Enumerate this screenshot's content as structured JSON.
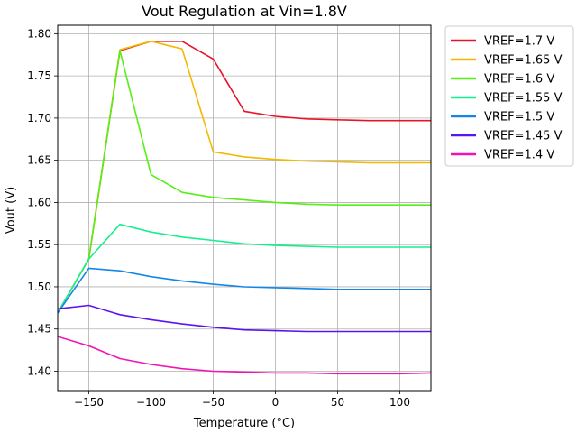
{
  "chart_data": {
    "type": "line",
    "title": "Vout Regulation at Vin=1.8V",
    "xlabel": "Temperature (°C)",
    "ylabel": "Vout (V)",
    "xlim": [
      -175,
      125
    ],
    "ylim": [
      1.377,
      1.81
    ],
    "xticks": [
      -150,
      -100,
      -50,
      0,
      50,
      100
    ],
    "xtick_labels": [
      "−150",
      "−100",
      "−50",
      "0",
      "50",
      "100"
    ],
    "yticks": [
      1.4,
      1.45,
      1.5,
      1.55,
      1.6,
      1.65,
      1.7,
      1.75,
      1.8
    ],
    "ytick_labels": [
      "1.40",
      "1.45",
      "1.50",
      "1.55",
      "1.60",
      "1.65",
      "1.70",
      "1.75",
      "1.80"
    ],
    "grid": true,
    "legend_position": "outside-top-right",
    "x": [
      -175,
      -150,
      -125,
      -100,
      -75,
      -50,
      -25,
      0,
      25,
      50,
      75,
      100,
      125
    ],
    "series": [
      {
        "name": "VREF=1.7 V",
        "color": "#e8132a",
        "values": [
          1.469,
          1.533,
          1.78,
          1.791,
          1.791,
          1.77,
          1.708,
          1.702,
          1.699,
          1.698,
          1.697,
          1.697,
          1.697
        ]
      },
      {
        "name": "VREF=1.65 V",
        "color": "#f5b800",
        "values": [
          1.469,
          1.533,
          1.781,
          1.791,
          1.782,
          1.66,
          1.654,
          1.651,
          1.649,
          1.648,
          1.647,
          1.647,
          1.647
        ]
      },
      {
        "name": "VREF=1.6 V",
        "color": "#55f014",
        "values": [
          1.469,
          1.533,
          1.78,
          1.633,
          1.612,
          1.606,
          1.603,
          1.6,
          1.598,
          1.597,
          1.597,
          1.597,
          1.597
        ]
      },
      {
        "name": "VREF=1.55 V",
        "color": "#14f08c",
        "values": [
          1.469,
          1.533,
          1.574,
          1.565,
          1.559,
          1.555,
          1.551,
          1.549,
          1.548,
          1.547,
          1.547,
          1.547,
          1.547
        ]
      },
      {
        "name": "VREF=1.5 V",
        "color": "#1487e6",
        "values": [
          1.469,
          1.522,
          1.519,
          1.512,
          1.507,
          1.503,
          1.5,
          1.499,
          1.498,
          1.497,
          1.497,
          1.497,
          1.497
        ]
      },
      {
        "name": "VREF=1.45 V",
        "color": "#5a14f0",
        "values": [
          1.474,
          1.478,
          1.467,
          1.461,
          1.456,
          1.452,
          1.449,
          1.448,
          1.447,
          1.447,
          1.447,
          1.447,
          1.447
        ]
      },
      {
        "name": "VREF=1.4 V",
        "color": "#f014b4",
        "values": [
          1.441,
          1.43,
          1.415,
          1.408,
          1.403,
          1.4,
          1.399,
          1.398,
          1.398,
          1.397,
          1.397,
          1.397,
          1.398
        ]
      }
    ]
  }
}
